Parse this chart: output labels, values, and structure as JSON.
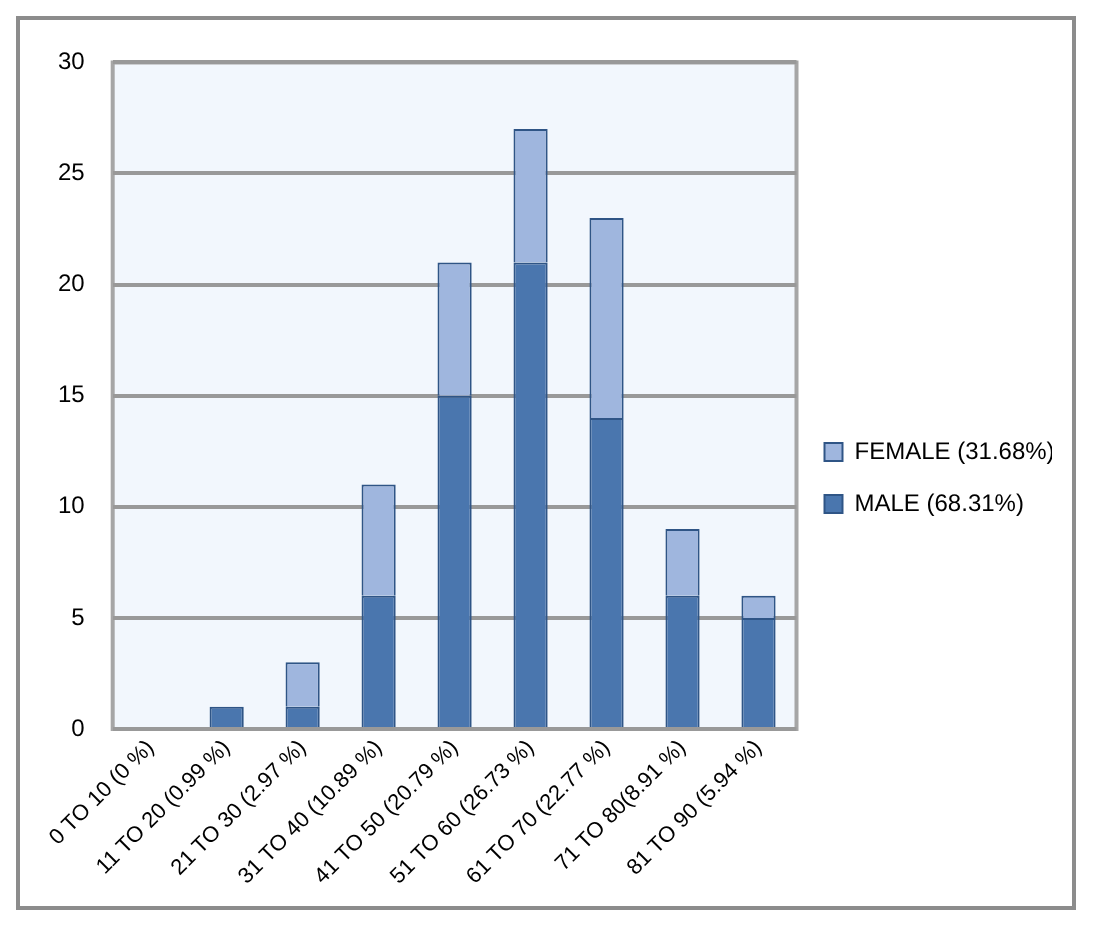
{
  "chart_data": {
    "type": "bar",
    "stacked": true,
    "categories": [
      "0 TO 10 (0 %)",
      "11 TO 20 (0.99 %)",
      "21 TO 30 (2.97 %)",
      "31 TO 40 (10.89 %)",
      "41 TO 50 (20.79 %)",
      "51 TO 60 (26.73 %)",
      "61 TO 70 (22.77 %)",
      "71 TO 80(8.91 %)",
      "81 TO 90 (5.94 %)"
    ],
    "series": [
      {
        "name": "MALE (68.31%)",
        "color": "#4a76ae",
        "values": [
          0,
          1,
          1,
          6,
          15,
          21,
          14,
          6,
          5
        ]
      },
      {
        "name": "FEMALE (31.68%)",
        "color": "#9fb6de",
        "values": [
          0,
          0,
          2,
          5,
          6,
          6,
          9,
          3,
          1
        ]
      }
    ],
    "ylim": [
      0,
      30
    ],
    "yticks": [
      0,
      5,
      10,
      15,
      20,
      25,
      30
    ],
    "grid": "y",
    "legend": "right"
  }
}
